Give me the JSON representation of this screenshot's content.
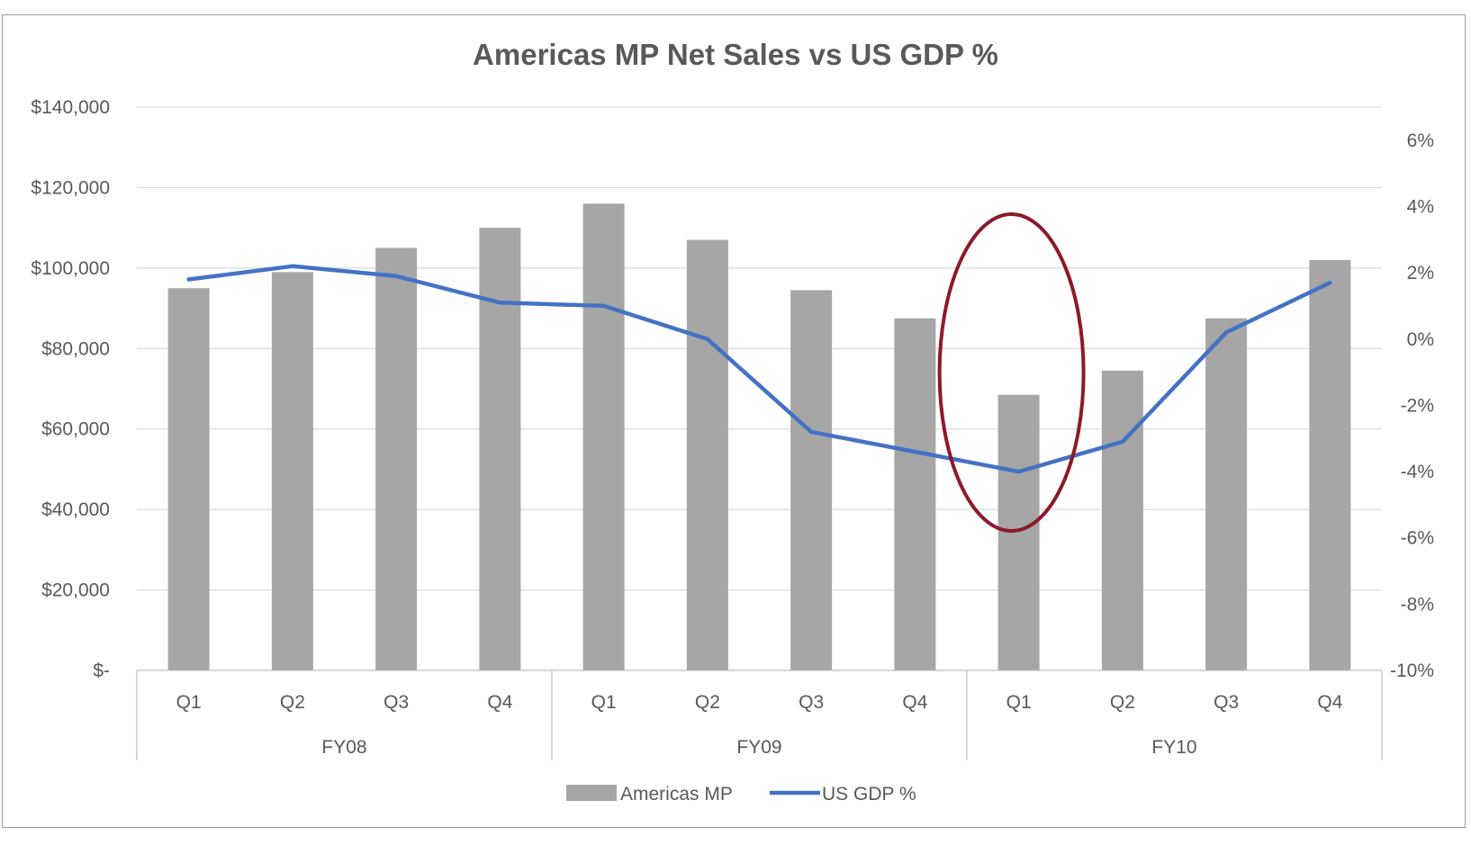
{
  "chart_data": {
    "type": "bar",
    "title": "Americas MP Net Sales vs US GDP %",
    "categories": [
      "Q1",
      "Q2",
      "Q3",
      "Q4",
      "Q1",
      "Q2",
      "Q3",
      "Q4",
      "Q1",
      "Q2",
      "Q3",
      "Q4"
    ],
    "groups": [
      {
        "label": "FY08",
        "span": 4
      },
      {
        "label": "FY09",
        "span": 4
      },
      {
        "label": "FY10",
        "span": 4
      }
    ],
    "series": [
      {
        "name": "Americas MP",
        "type": "bar",
        "axis": "left",
        "color": "#a6a6a6",
        "values": [
          95000,
          99000,
          105000,
          110000,
          116000,
          107000,
          94500,
          87500,
          68500,
          74500,
          87500,
          102000
        ]
      },
      {
        "name": "US GDP %",
        "type": "line",
        "axis": "right",
        "color": "#4472c4",
        "values": [
          1.8,
          2.2,
          1.9,
          1.1,
          1.0,
          0.0,
          -2.8,
          -3.4,
          -4.0,
          -3.1,
          0.2,
          1.7
        ]
      }
    ],
    "y_left": {
      "ylim": [
        0,
        140000
      ],
      "ticks": [
        0,
        20000,
        40000,
        60000,
        80000,
        100000,
        120000,
        140000
      ],
      "tick_labels": [
        "$-",
        "$20,000",
        "$40,000",
        "$60,000",
        "$80,000",
        "$100,000",
        "$120,000",
        "$140,000"
      ]
    },
    "y_right": {
      "ylim": [
        -10,
        7
      ],
      "ticks": [
        -10,
        -8,
        -6,
        -4,
        -2,
        0,
        2,
        4,
        6
      ],
      "tick_labels": [
        "-10%",
        "-8%",
        "-6%",
        "-4%",
        "-2%",
        "0%",
        "2%",
        "4%",
        "6%"
      ]
    },
    "grid": true,
    "legend_position": "bottom",
    "annotation": {
      "shape": "ellipse",
      "category_index": 8,
      "color": "#8b1a2b"
    }
  }
}
